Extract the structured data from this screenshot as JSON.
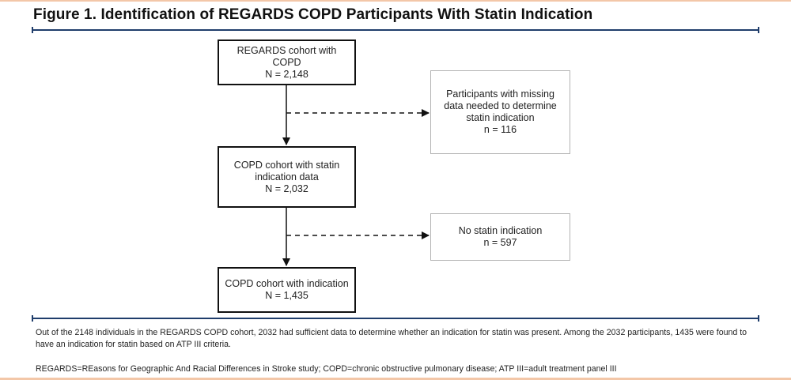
{
  "title": "Figure 1. Identification of REGARDS COPD Participants With Statin Indication",
  "boxes": {
    "cohort": {
      "line1": "REGARDS cohort with",
      "line2": "COPD",
      "count": "N = 2,148"
    },
    "statin_data": {
      "line1": "COPD cohort with statin",
      "line2": "indication data",
      "count": "N = 2,032"
    },
    "indication": {
      "line1": "COPD cohort with indication",
      "count": "N = 1,435"
    },
    "missing": {
      "line1": "Participants with missing",
      "line2": "data needed to determine",
      "line3": "statin indication",
      "count": "n = 116"
    },
    "no_statin": {
      "line1": "No statin indication",
      "count": "n = 597"
    }
  },
  "caption": {
    "summary": "Out of the 2148 individuals in the REGARDS COPD cohort, 2032 had sufficient data to determine whether an indication for statin was present. Among the 2032 participants, 1435 were found to have an indication for statin based on ATP III criteria.",
    "abbreviations": "REGARDS=REasons for Geographic And Racial Differences in Stroke study; COPD=chronic obstructive pulmonary disease; ATP III=adult treatment panel III"
  },
  "colors": {
    "rule": "#1f3d6b",
    "accent": "#f3c7a8",
    "main_border": "#111111",
    "exclusion_border": "#b3b3b3"
  }
}
